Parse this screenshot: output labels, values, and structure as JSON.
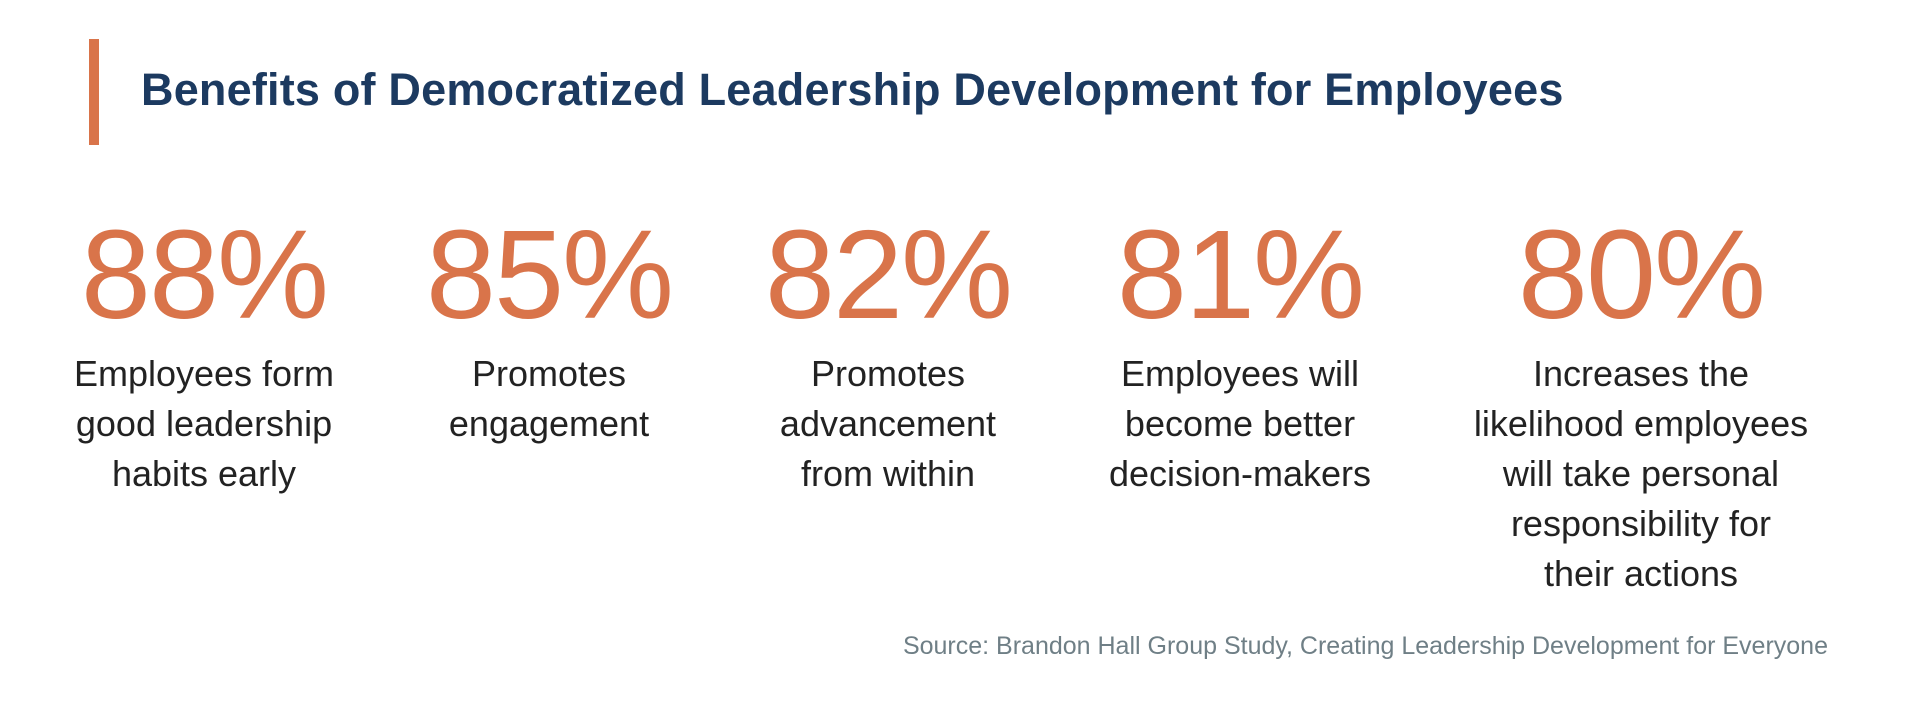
{
  "title": "Benefits of Democratized Leadership Development for Employees",
  "colors": {
    "accent": "#d9744a",
    "title": "#1c3a60",
    "source": "#6f7f86"
  },
  "stats": [
    {
      "value": "88%",
      "lines": [
        "Employees form",
        "good leadership",
        "habits early"
      ]
    },
    {
      "value": "85%",
      "lines": [
        "Promotes",
        "engagement"
      ]
    },
    {
      "value": "82%",
      "lines": [
        "Promotes",
        "advancement",
        "from within"
      ]
    },
    {
      "value": "81%",
      "lines": [
        "Employees will",
        "become better",
        "decision-makers"
      ]
    },
    {
      "value": "80%",
      "lines": [
        "Increases the",
        "likelihood employees",
        "will take personal",
        "responsibility for",
        "their actions"
      ]
    }
  ],
  "source": "Source: Brandon Hall Group Study, Creating Leadership Development for Everyone"
}
